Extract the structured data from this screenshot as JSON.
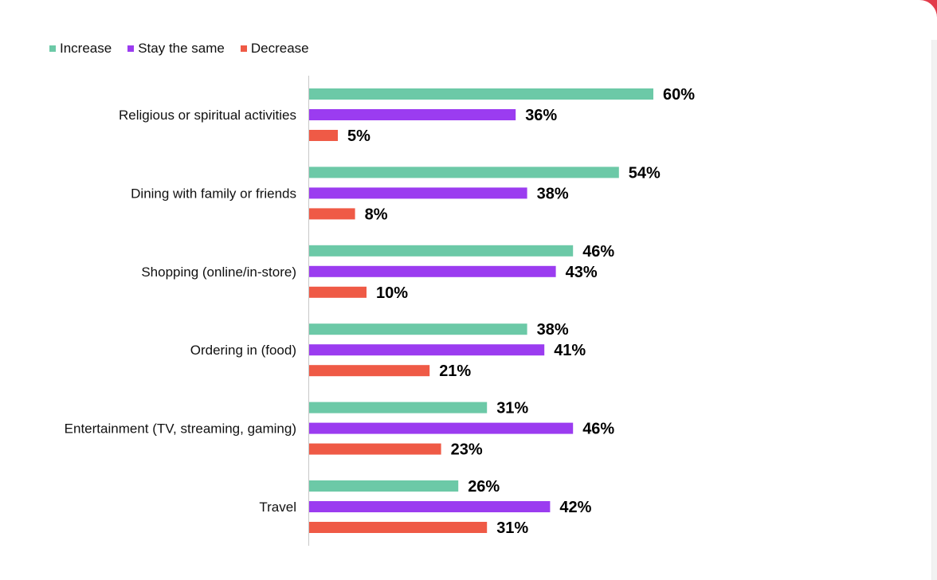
{
  "chart_data": {
    "type": "bar",
    "orientation": "horizontal",
    "title": "",
    "xlabel": "",
    "ylabel": "",
    "xlim": [
      0,
      60
    ],
    "grid": false,
    "legend_position": "top-left",
    "value_format": "percent",
    "categories": [
      "Religious or spiritual activities",
      "Dining with family or friends",
      "Shopping (online/in-store)",
      "Ordering in (food)",
      "Entertainment (TV, streaming, gaming)",
      "Travel"
    ],
    "series": [
      {
        "name": "Increase",
        "color": "#6cc9a7",
        "values": [
          60,
          54,
          46,
          38,
          31,
          26
        ]
      },
      {
        "name": "Stay the same",
        "color": "#9b3cf0",
        "values": [
          36,
          38,
          43,
          41,
          46,
          42
        ]
      },
      {
        "name": "Decrease",
        "color": "#ef5a46",
        "values": [
          5,
          8,
          10,
          21,
          23,
          31
        ]
      }
    ],
    "data_labels": [
      [
        "60%",
        "36%",
        "5%"
      ],
      [
        "54%",
        "38%",
        "8%"
      ],
      [
        "46%",
        "43%",
        "10%"
      ],
      [
        "38%",
        "41%",
        "21%"
      ],
      [
        "31%",
        "46%",
        "23%"
      ],
      [
        "26%",
        "42%",
        "31%"
      ]
    ]
  }
}
